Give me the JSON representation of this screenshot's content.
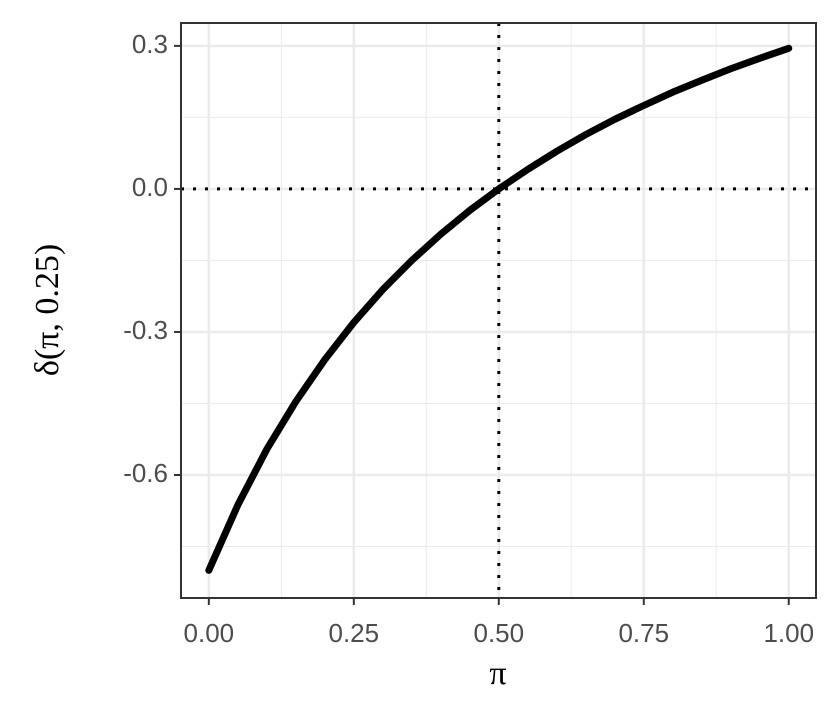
{
  "chart_data": {
    "type": "line",
    "x_label": "π",
    "y_label": "δ(π, 0.25)",
    "x": [
      0,
      0.05,
      0.1,
      0.15,
      0.2,
      0.25,
      0.3,
      0.35,
      0.4,
      0.45,
      0.5,
      0.55,
      0.6,
      0.65,
      0.7,
      0.75,
      0.8,
      0.85,
      0.9,
      0.95,
      1.0
    ],
    "series": [
      {
        "color": "#000000",
        "values": [
          -0.8,
          -0.663,
          -0.546,
          -0.446,
          -0.358,
          -0.28,
          -0.211,
          -0.15,
          -0.095,
          -0.045,
          0,
          0.041,
          0.079,
          0.114,
          0.146,
          0.175,
          0.203,
          0.228,
          0.252,
          0.274,
          0.295
        ]
      }
    ],
    "xlim": [
      -0.048,
      1.047
    ],
    "ylim": [
      -0.858,
      0.348
    ],
    "xticks": [
      {
        "value": 0,
        "label": "0.00"
      },
      0.25,
      {
        "value": 0.5,
        "label": "0.50"
      },
      0.75,
      {
        "value": 1,
        "label": "1.00"
      }
    ],
    "yticks": [
      -0.6,
      -0.3,
      {
        "value": 0,
        "label": "0.0"
      },
      0.3
    ],
    "minor_xticks": [
      0.125,
      0.375,
      0.625,
      0.875
    ],
    "minor_yticks": [
      -0.75,
      -0.45,
      -0.15,
      0.15
    ],
    "grid": true,
    "reference_lines": {
      "x": 0.5,
      "y": 0
    }
  }
}
